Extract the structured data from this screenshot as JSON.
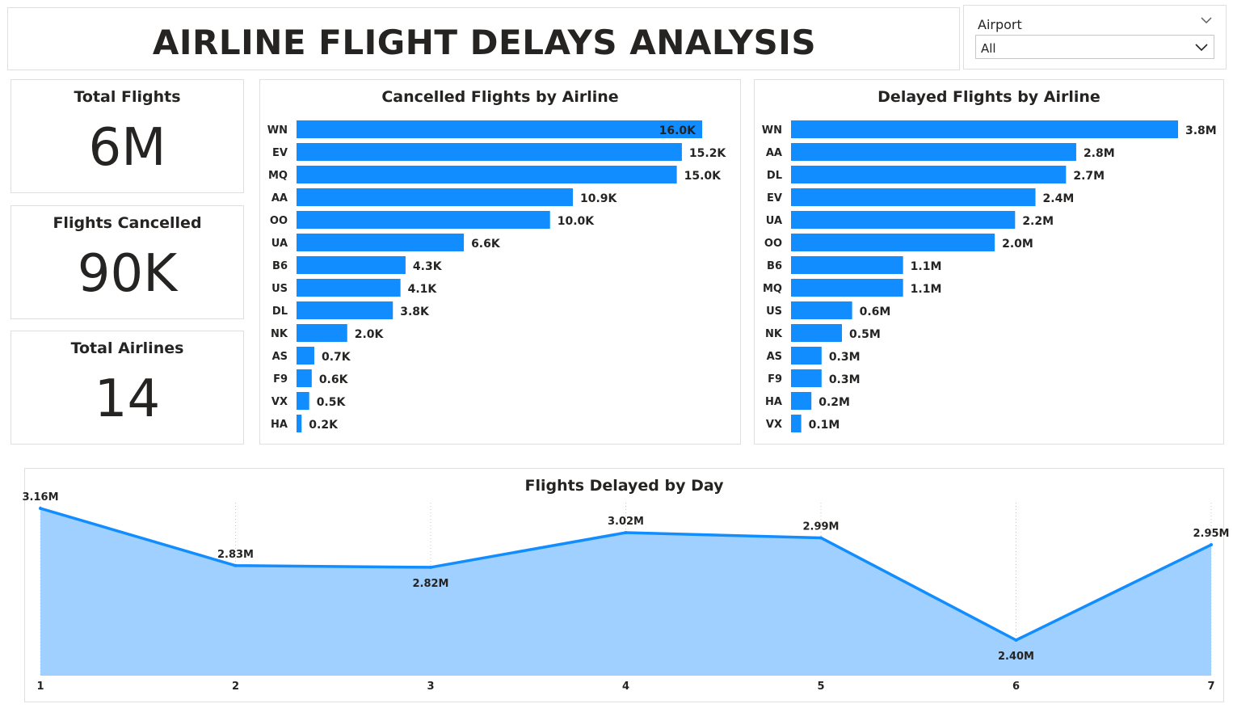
{
  "header": {
    "title": "AIRLINE FLIGHT DELAYS ANALYSIS"
  },
  "slicer": {
    "label": "Airport",
    "value": "All",
    "icon": "chevron-down-icon"
  },
  "kpis": [
    {
      "title": "Total Flights",
      "value": "6M"
    },
    {
      "title": "Flights Cancelled",
      "value": "90K"
    },
    {
      "title": "Total Airlines",
      "value": "14"
    }
  ],
  "colors": {
    "bar": "#118dff",
    "area": "#9fd0ff",
    "line": "#118dff"
  },
  "chart_data": [
    {
      "type": "bar",
      "orientation": "horizontal",
      "title": "Cancelled Flights by Airline",
      "categories": [
        "WN",
        "EV",
        "MQ",
        "AA",
        "OO",
        "UA",
        "B6",
        "US",
        "DL",
        "NK",
        "AS",
        "F9",
        "VX",
        "HA"
      ],
      "values": [
        16.0,
        15.2,
        15.0,
        10.9,
        10.0,
        6.6,
        4.3,
        4.1,
        3.8,
        2.0,
        0.7,
        0.6,
        0.5,
        0.2
      ],
      "value_labels": [
        "16.0K",
        "15.2K",
        "15.0K",
        "10.9K",
        "10.0K",
        "6.6K",
        "4.3K",
        "4.1K",
        "3.8K",
        "2.0K",
        "0.7K",
        "0.6K",
        "0.5K",
        "0.2K"
      ],
      "unit": "thousands",
      "xlim": [
        0,
        16.0
      ]
    },
    {
      "type": "bar",
      "orientation": "horizontal",
      "title": "Delayed Flights by Airline",
      "categories": [
        "WN",
        "AA",
        "DL",
        "EV",
        "UA",
        "OO",
        "B6",
        "MQ",
        "US",
        "NK",
        "AS",
        "F9",
        "HA",
        "VX"
      ],
      "values": [
        3.8,
        2.8,
        2.7,
        2.4,
        2.2,
        2.0,
        1.1,
        1.1,
        0.6,
        0.5,
        0.3,
        0.3,
        0.2,
        0.1
      ],
      "value_labels": [
        "3.8M",
        "2.8M",
        "2.7M",
        "2.4M",
        "2.2M",
        "2.0M",
        "1.1M",
        "1.1M",
        "0.6M",
        "0.5M",
        "0.3M",
        "0.3M",
        "0.2M",
        "0.1M"
      ],
      "unit": "millions",
      "xlim": [
        0,
        3.8
      ]
    },
    {
      "type": "area",
      "title": "Flights Delayed by Day",
      "x": [
        1,
        2,
        3,
        4,
        5,
        6,
        7
      ],
      "values": [
        3.16,
        2.83,
        2.82,
        3.02,
        2.99,
        2.4,
        2.95
      ],
      "value_labels": [
        "3.16M",
        "2.83M",
        "2.82M",
        "3.02M",
        "2.99M",
        "2.40M",
        "2.95M"
      ],
      "unit": "millions",
      "grid": "vertical dotted"
    }
  ]
}
